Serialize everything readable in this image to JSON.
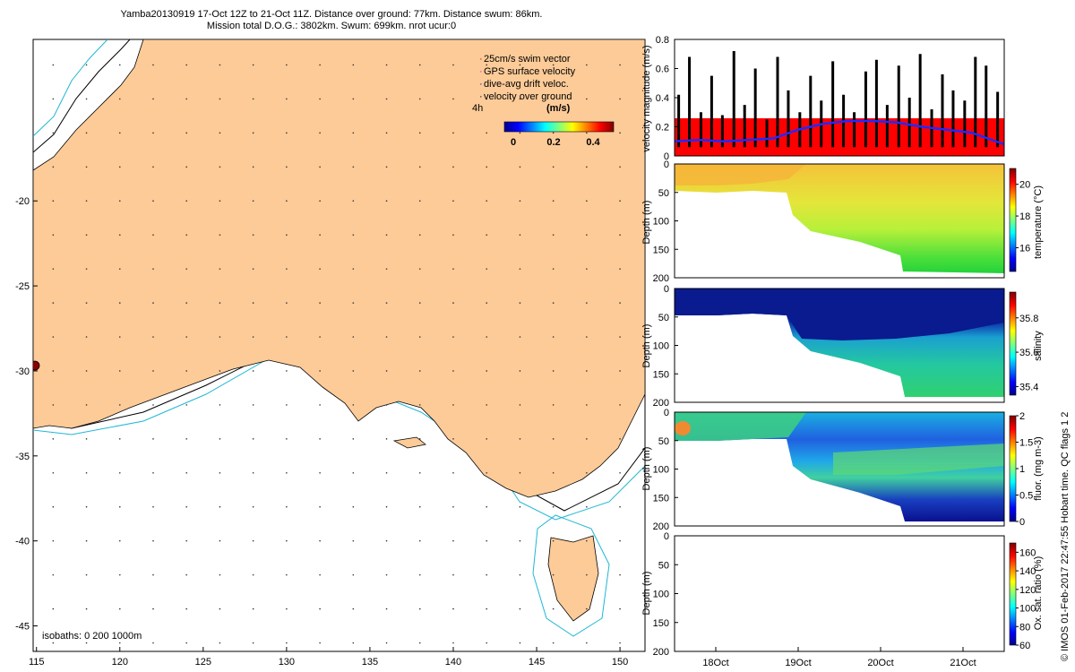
{
  "title_line1": "Yamba20130919 17-Oct 12Z to 21-Oct 11Z. Distance over ground: 77km. Distance swum: 86km.",
  "title_line2": "Mission total D.O.G.: 3802km. Swum: 699km. nrot ucur:0",
  "credit": "© IMOS 01-Feb-2017 22:47:55 Hobart time. QC flags 1  2",
  "colors": {
    "land": "#fccb98",
    "isobath_200": "#000000",
    "isobath_1000": "#1fb7d4",
    "velocity_fill": "#ff0000",
    "drift_line": "#1f2bff"
  },
  "map": {
    "legend": [
      "25cm/s swim vector",
      "GPS surface velocity",
      "dive-avg drift veloc.",
      "velocity over ground"
    ],
    "legend_time": "4h",
    "colorbar_label": "(m/s)",
    "colorbar_ticks": [
      "0",
      "0.2",
      "0.4"
    ],
    "colorbar_range": [
      0,
      0.4
    ],
    "isobath_label": "isobaths: 0   200  1000m",
    "x_ticks": [
      "115",
      "120",
      "125",
      "130",
      "135",
      "140",
      "145",
      "150"
    ],
    "y_ticks": [
      "-20",
      "-25",
      "-30",
      "-35",
      "-40",
      "-45"
    ],
    "xlim": [
      114.8,
      151.5
    ],
    "ylim": [
      -46.5,
      -10.5
    ]
  },
  "time_ticks": [
    "18Oct",
    "19Oct",
    "20Oct",
    "21Oct"
  ],
  "depth_ticks": [
    "0",
    "50",
    "100",
    "150",
    "200"
  ],
  "chart_data": [
    {
      "type": "line",
      "ylabel": "velocity magnitude (m/s)",
      "ylim": [
        0,
        0.8
      ],
      "y_ticks": [
        "0",
        "0.2",
        "0.4",
        "0.6",
        "0.8"
      ],
      "time_range_days": [
        17.5,
        21.5
      ],
      "series": [
        {
          "name": "velocity over ground",
          "x": [
            17.55,
            17.68,
            17.82,
            17.95,
            18.08,
            18.22,
            18.35,
            18.48,
            18.62,
            18.75,
            18.88,
            19.02,
            19.15,
            19.28,
            19.42,
            19.55,
            19.68,
            19.82,
            19.95,
            20.08,
            20.22,
            20.35,
            20.48,
            20.62,
            20.75,
            20.88,
            21.02,
            21.15,
            21.28,
            21.42
          ],
          "values": [
            0.42,
            0.68,
            0.3,
            0.55,
            0.28,
            0.72,
            0.35,
            0.6,
            0.25,
            0.68,
            0.45,
            0.3,
            0.55,
            0.38,
            0.65,
            0.42,
            0.3,
            0.58,
            0.66,
            0.35,
            0.62,
            0.4,
            0.7,
            0.32,
            0.56,
            0.45,
            0.38,
            0.68,
            0.62,
            0.44
          ]
        },
        {
          "name": "dive-avg drift veloc.",
          "x": [
            17.5,
            17.8,
            18.1,
            18.4,
            18.7,
            19.0,
            19.3,
            19.6,
            19.9,
            20.2,
            20.5,
            20.8,
            21.1,
            21.3,
            21.5
          ],
          "values": [
            0.1,
            0.11,
            0.1,
            0.11,
            0.12,
            0.18,
            0.22,
            0.24,
            0.24,
            0.23,
            0.2,
            0.18,
            0.16,
            0.12,
            0.08
          ]
        }
      ]
    },
    {
      "type": "heatmap",
      "ylabel": "Depth (m)",
      "colorbar_label": "temperature (°C)",
      "colorbar_ticks": [
        "16",
        "18",
        "20"
      ],
      "colorbar_range": [
        14.5,
        21
      ]
    },
    {
      "type": "heatmap",
      "ylabel": "Depth (m)",
      "colorbar_label": "salinity",
      "colorbar_ticks": [
        "35.4",
        "35.6",
        "35.8"
      ],
      "colorbar_range": [
        35.35,
        35.95
      ]
    },
    {
      "type": "heatmap",
      "ylabel": "Depth (m)",
      "colorbar_label": "fluor. (mg m-3)",
      "colorbar_ticks": [
        "0",
        "0.5",
        "1",
        "1.5",
        "2"
      ],
      "colorbar_range": [
        0,
        2
      ]
    },
    {
      "type": "heatmap",
      "ylabel": "Depth (m)",
      "colorbar_label": "Ox. sat. ratio (%)",
      "colorbar_ticks": [
        "60",
        "80",
        "100",
        "120",
        "140",
        "160"
      ],
      "colorbar_range": [
        60,
        170
      ]
    }
  ]
}
